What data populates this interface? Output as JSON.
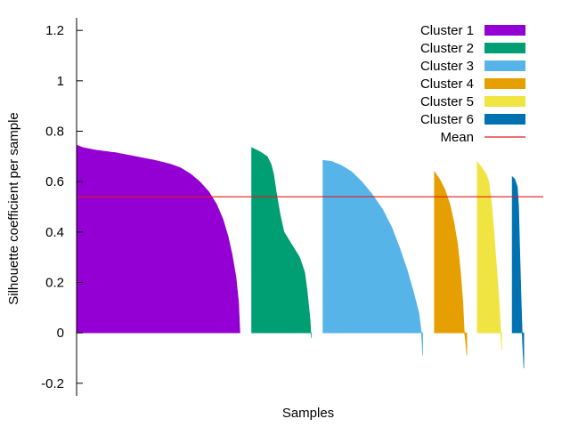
{
  "chart_data": {
    "type": "area",
    "title": "",
    "xlabel": "Samples",
    "ylabel": "Silhouette coefficient per sample",
    "ylim": [
      -0.25,
      1.25
    ],
    "yticks": [
      -0.2,
      0,
      0.2,
      0.4,
      0.6,
      0.8,
      1,
      1.2
    ],
    "ytick_labels": [
      "-0.2",
      "0",
      "0.2",
      "0.4",
      "0.6",
      "0.8",
      "1",
      "1.2"
    ],
    "x_total_samples": 360,
    "grid": false,
    "legend_position": "top-right",
    "mean": {
      "name": "Mean",
      "value": 0.54,
      "color": "#e41a1c"
    },
    "series": [
      {
        "name": "Cluster 1",
        "color": "#9400d3",
        "x_start": 0,
        "x_end": 126,
        "profile": [
          [
            0,
            0.745
          ],
          [
            5,
            0.735
          ],
          [
            15,
            0.725
          ],
          [
            30,
            0.715
          ],
          [
            45,
            0.7
          ],
          [
            60,
            0.685
          ],
          [
            72,
            0.67
          ],
          [
            80,
            0.655
          ],
          [
            88,
            0.63
          ],
          [
            95,
            0.6
          ],
          [
            102,
            0.56
          ],
          [
            108,
            0.51
          ],
          [
            113,
            0.45
          ],
          [
            117,
            0.38
          ],
          [
            120,
            0.31
          ],
          [
            123,
            0.22
          ],
          [
            125,
            0.12
          ],
          [
            126,
            0.0
          ]
        ]
      },
      {
        "name": "Cluster 2",
        "color": "#009e73",
        "x_start": 135,
        "x_end": 181,
        "profile": [
          [
            135,
            0.735
          ],
          [
            141,
            0.72
          ],
          [
            147,
            0.7
          ],
          [
            150,
            0.67
          ],
          [
            152,
            0.63
          ],
          [
            154,
            0.56
          ],
          [
            157,
            0.47
          ],
          [
            160,
            0.4
          ],
          [
            166,
            0.35
          ],
          [
            172,
            0.3
          ],
          [
            176,
            0.24
          ],
          [
            178,
            0.16
          ],
          [
            180,
            0.06
          ],
          [
            181,
            -0.02
          ]
        ]
      },
      {
        "name": "Cluster 3",
        "color": "#56b4e9",
        "x_start": 190,
        "x_end": 267,
        "profile": [
          [
            190,
            0.685
          ],
          [
            197,
            0.68
          ],
          [
            204,
            0.665
          ],
          [
            212,
            0.64
          ],
          [
            220,
            0.6
          ],
          [
            228,
            0.55
          ],
          [
            236,
            0.49
          ],
          [
            243,
            0.42
          ],
          [
            249,
            0.34
          ],
          [
            255,
            0.25
          ],
          [
            260,
            0.16
          ],
          [
            264,
            0.08
          ],
          [
            266,
            0.0
          ],
          [
            267,
            -0.09
          ]
        ]
      },
      {
        "name": "Cluster 4",
        "color": "#e69f00",
        "x_start": 276,
        "x_end": 301,
        "profile": [
          [
            276,
            0.64
          ],
          [
            280,
            0.61
          ],
          [
            284,
            0.57
          ],
          [
            288,
            0.51
          ],
          [
            291,
            0.44
          ],
          [
            294,
            0.35
          ],
          [
            296,
            0.25
          ],
          [
            298,
            0.12
          ],
          [
            299,
            0.01
          ],
          [
            300,
            -0.03
          ],
          [
            301,
            -0.09
          ]
        ]
      },
      {
        "name": "Cluster 5",
        "color": "#f0e442",
        "x_start": 309,
        "x_end": 328,
        "profile": [
          [
            309,
            0.68
          ],
          [
            312,
            0.66
          ],
          [
            316,
            0.63
          ],
          [
            318,
            0.6
          ],
          [
            320,
            0.52
          ],
          [
            322,
            0.4
          ],
          [
            324,
            0.26
          ],
          [
            326,
            0.12
          ],
          [
            327,
            0.02
          ],
          [
            328,
            -0.07
          ]
        ]
      },
      {
        "name": "Cluster 6",
        "color": "#0072b2",
        "x_start": 336,
        "x_end": 345,
        "profile": [
          [
            336,
            0.62
          ],
          [
            338,
            0.61
          ],
          [
            340,
            0.58
          ],
          [
            341,
            0.5
          ],
          [
            342,
            0.3
          ],
          [
            343,
            0.12
          ],
          [
            344,
            -0.04
          ],
          [
            345,
            -0.14
          ]
        ]
      }
    ]
  }
}
